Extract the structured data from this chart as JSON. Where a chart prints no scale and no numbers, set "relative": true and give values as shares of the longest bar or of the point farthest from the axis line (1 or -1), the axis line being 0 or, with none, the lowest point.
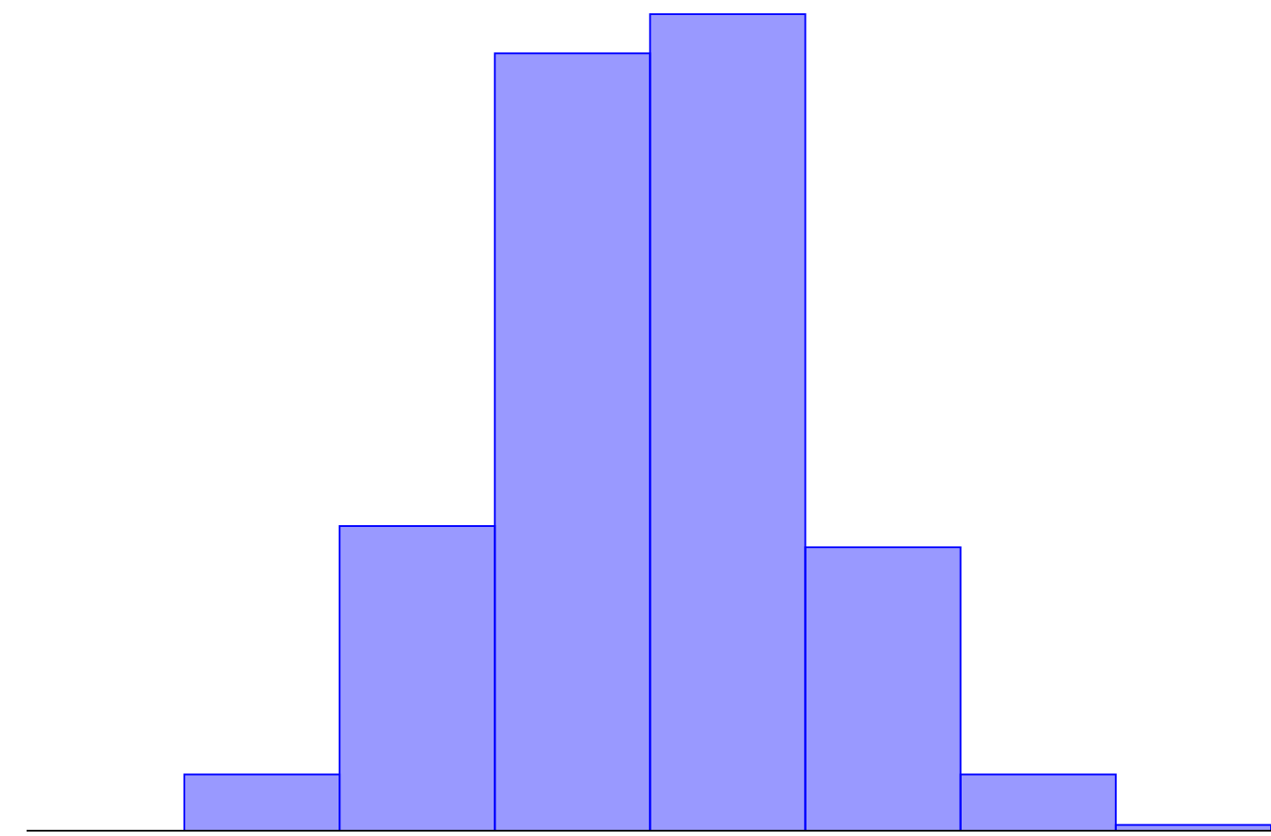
{
  "chart_data": {
    "type": "bar",
    "relative": true,
    "tick_labels": false,
    "categories": [
      null,
      null,
      null,
      null,
      null,
      null,
      null
    ],
    "values": [
      0.069,
      0.373,
      0.952,
      1,
      0.347,
      0.069,
      0.007
    ],
    "color": "#0000ff"
  }
}
